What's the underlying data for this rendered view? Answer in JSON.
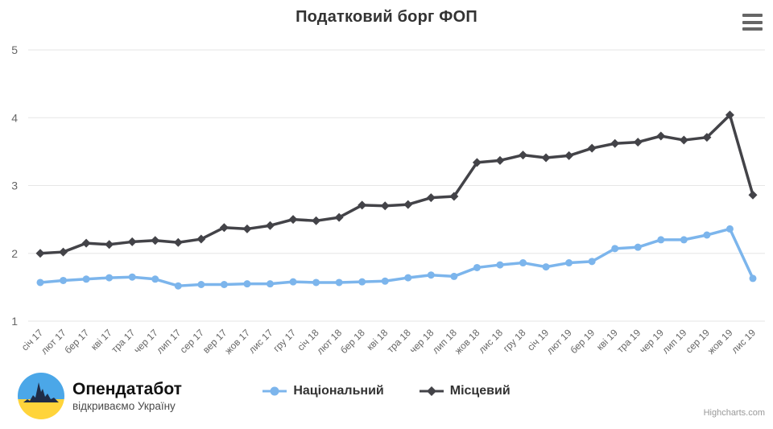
{
  "chart_data": {
    "type": "line",
    "title": "Податковий борг ФОП",
    "categories": [
      "січ 17",
      "лют 17",
      "бер 17",
      "кві 17",
      "тра 17",
      "чер 17",
      "лип 17",
      "сер 17",
      "вер 17",
      "жов 17",
      "лис 17",
      "гру 17",
      "січ 18",
      "лют 18",
      "бер 18",
      "кві 18",
      "тра 18",
      "чер 18",
      "лип 18",
      "жов 18",
      "лис 18",
      "гру 18",
      "січ 19",
      "лют 19",
      "бер 19",
      "кві 19",
      "тра 19",
      "чер 19",
      "лип 19",
      "сер 19",
      "жов 19",
      "лис 19"
    ],
    "series": [
      {
        "name": "Національний",
        "color": "#7cb5ec",
        "marker": "circle",
        "values": [
          1.57,
          1.6,
          1.62,
          1.64,
          1.65,
          1.62,
          1.52,
          1.54,
          1.54,
          1.55,
          1.55,
          1.58,
          1.57,
          1.57,
          1.58,
          1.59,
          1.64,
          1.68,
          1.66,
          1.79,
          1.83,
          1.86,
          1.8,
          1.86,
          1.88,
          2.07,
          2.09,
          2.2,
          2.2,
          2.27,
          2.36,
          1.63
        ]
      },
      {
        "name": "Місцевий",
        "color": "#434348",
        "marker": "diamond",
        "values": [
          2.0,
          2.02,
          2.15,
          2.13,
          2.17,
          2.19,
          2.16,
          2.21,
          2.38,
          2.36,
          2.41,
          2.5,
          2.48,
          2.53,
          2.71,
          2.7,
          2.72,
          2.82,
          2.84,
          3.34,
          3.37,
          3.45,
          3.41,
          3.44,
          3.55,
          3.62,
          3.64,
          3.73,
          3.67,
          3.71,
          4.04,
          2.86
        ]
      }
    ],
    "ylim": [
      1,
      5
    ],
    "yticks": [
      1,
      2,
      3,
      4,
      5
    ],
    "grid": "horizontal",
    "legend_position": "bottom-center",
    "x_label_rotation": -45
  },
  "footer": {
    "brand": "Опендатабот",
    "tagline": "відкриваємо Україну",
    "credits": "Highcharts.com"
  },
  "colors": {
    "gridline": "#e6e6e6",
    "axis_label": "#666666",
    "title": "#333333",
    "credits": "#999999",
    "logo_blue": "#4BA7E8",
    "logo_yellow": "#FFD43B",
    "logo_navy": "#1F2C47"
  }
}
